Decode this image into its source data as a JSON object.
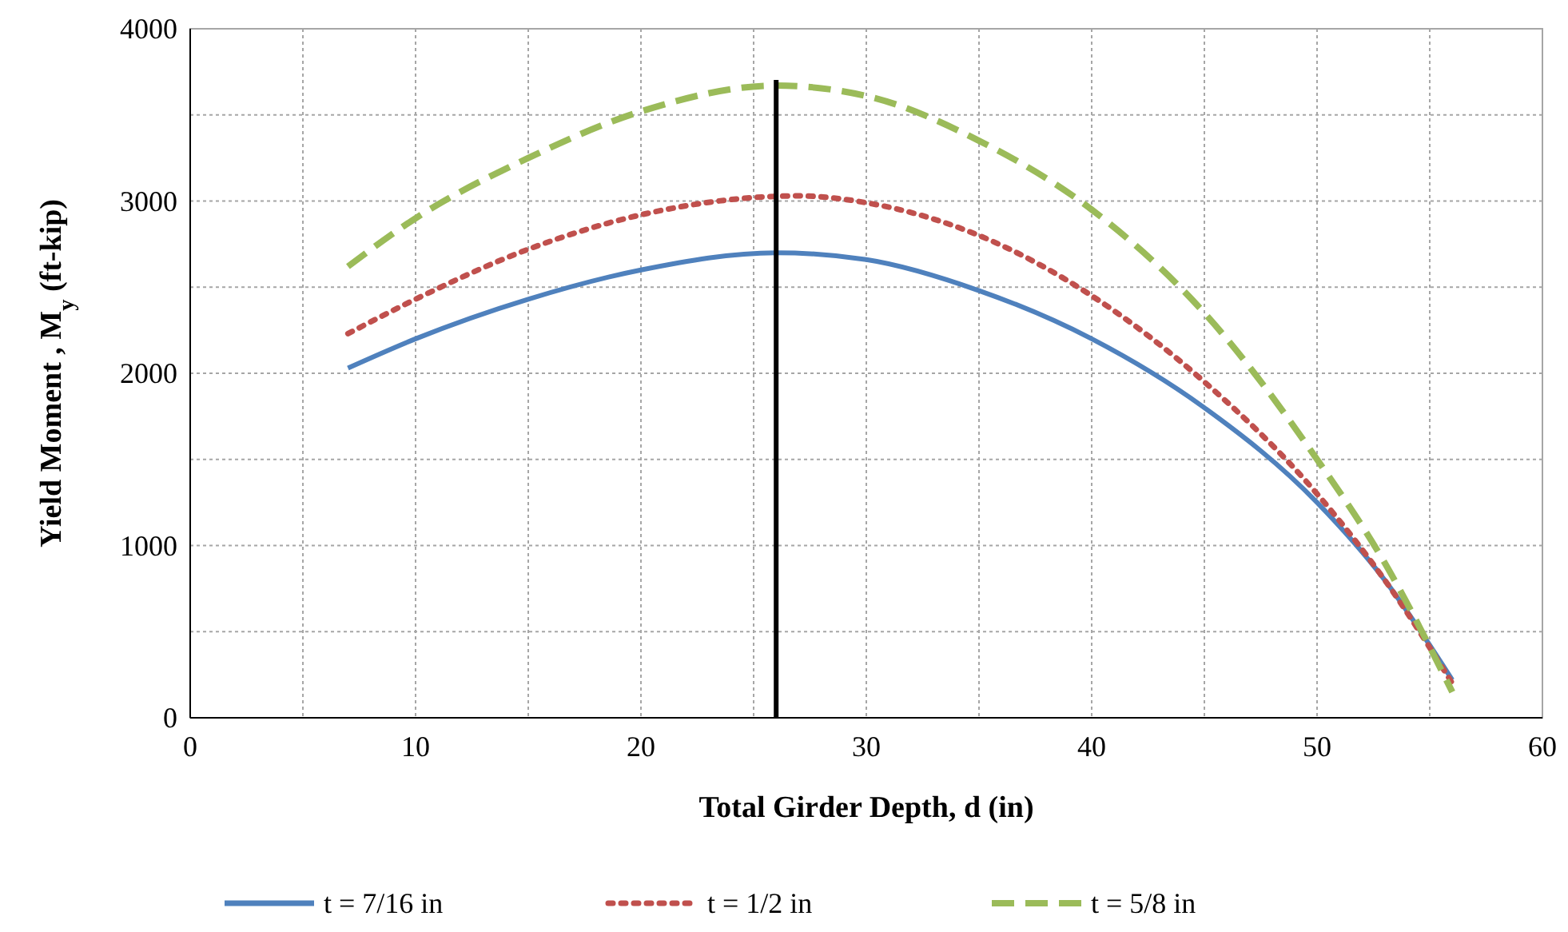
{
  "chart_data": {
    "type": "line",
    "xlabel": "Total Girder Depth, d (in)",
    "ylabel": "Yield Moment , M$_{y}$ (ft-kip)",
    "xlim": [
      0,
      60
    ],
    "xticks": [
      0,
      10,
      20,
      30,
      40,
      50,
      60
    ],
    "ylim": [
      0,
      4000
    ],
    "yticks": [
      0,
      1000,
      2000,
      3000,
      4000
    ],
    "grid": true,
    "legend": "bottom",
    "ref_lines": [
      {
        "axis": "x",
        "value": 26,
        "color": "#000000"
      }
    ],
    "series": [
      {
        "name": "t = 7/16 in",
        "color": "#4f81bd",
        "line_style": "solid",
        "x": [
          7,
          10,
          15,
          20,
          26,
          30,
          35,
          40,
          45,
          50,
          53,
          56
        ],
        "values": [
          2030,
          2200,
          2430,
          2600,
          2700,
          2660,
          2480,
          2200,
          1800,
          1250,
          800,
          220
        ]
      },
      {
        "name": "t = 1/2 in",
        "color": "#c0504d",
        "line_style": "dotted",
        "x": [
          7,
          10,
          15,
          20,
          27,
          30,
          35,
          40,
          45,
          50,
          53,
          56
        ],
        "values": [
          2230,
          2430,
          2720,
          2920,
          3030,
          2990,
          2800,
          2450,
          1950,
          1300,
          800,
          200
        ]
      },
      {
        "name": "t = 5/8 in",
        "color": "#9bbb59",
        "line_style": "dashed",
        "x": [
          7,
          10,
          15,
          20,
          26,
          30,
          35,
          40,
          45,
          50,
          53,
          56
        ],
        "values": [
          2620,
          2900,
          3250,
          3520,
          3670,
          3610,
          3350,
          2950,
          2350,
          1500,
          900,
          150
        ]
      }
    ]
  }
}
